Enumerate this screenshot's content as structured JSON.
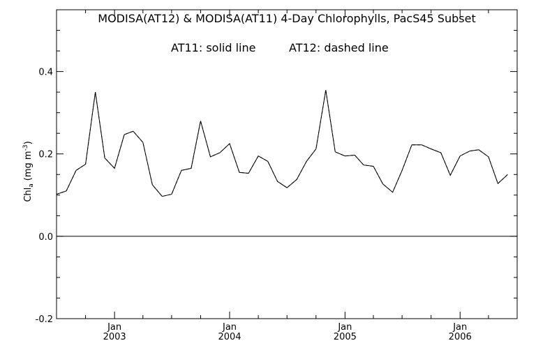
{
  "chart_data": {
    "type": "line",
    "title": "MODISA(AT12) & MODISA(AT11) 4-Day Chlorophylls, PacS45 Subset",
    "annotation": {
      "left": "AT11: solid line",
      "right": "AT12: dashed line"
    },
    "ylabel": {
      "main": "Chl",
      "sub": "a",
      "units": "(mg m",
      "exp": "-3",
      "close": ")"
    },
    "xlabel": "",
    "ylim": [
      -0.2,
      0.55
    ],
    "xlim": [
      "2002-07-01",
      "2006-07-01"
    ],
    "y_ticks": [
      -0.2,
      0.0,
      0.2,
      0.4
    ],
    "y_tick_labels": [
      "-0.2",
      "0.0",
      "0.2",
      "0.4"
    ],
    "x_tick_month_label": "Jan",
    "x_ticks": [
      "2003-01-01",
      "2004-01-01",
      "2005-01-01",
      "2006-01-01"
    ],
    "x_tick_year_labels": [
      "2003",
      "2004",
      "2005",
      "2006"
    ],
    "zero_line": 0.0,
    "series": [
      {
        "name": "AT11",
        "style": "solid",
        "color": "#000000",
        "points": [
          [
            "2002-07-01",
            0.102
          ],
          [
            "2002-08-01",
            0.11
          ],
          [
            "2002-09-01",
            0.16
          ],
          [
            "2002-10-01",
            0.175
          ],
          [
            "2002-11-01",
            0.35
          ],
          [
            "2002-12-01",
            0.19
          ],
          [
            "2003-01-01",
            0.165
          ],
          [
            "2003-02-01",
            0.247
          ],
          [
            "2003-03-01",
            0.255
          ],
          [
            "2003-04-01",
            0.228
          ],
          [
            "2003-05-01",
            0.125
          ],
          [
            "2003-06-01",
            0.097
          ],
          [
            "2003-07-01",
            0.102
          ],
          [
            "2003-08-01",
            0.16
          ],
          [
            "2003-09-01",
            0.165
          ],
          [
            "2003-10-01",
            0.28
          ],
          [
            "2003-11-01",
            0.193
          ],
          [
            "2003-12-01",
            0.203
          ],
          [
            "2004-01-01",
            0.225
          ],
          [
            "2004-02-01",
            0.155
          ],
          [
            "2004-03-01",
            0.153
          ],
          [
            "2004-04-01",
            0.195
          ],
          [
            "2004-05-01",
            0.182
          ],
          [
            "2004-06-01",
            0.133
          ],
          [
            "2004-07-01",
            0.118
          ],
          [
            "2004-08-01",
            0.138
          ],
          [
            "2004-09-01",
            0.182
          ],
          [
            "2004-10-01",
            0.212
          ],
          [
            "2004-11-01",
            0.355
          ],
          [
            "2004-12-01",
            0.205
          ],
          [
            "2005-01-01",
            0.195
          ],
          [
            "2005-02-01",
            0.197
          ],
          [
            "2005-03-01",
            0.173
          ],
          [
            "2005-04-01",
            0.17
          ],
          [
            "2005-05-01",
            0.127
          ],
          [
            "2005-06-01",
            0.107
          ],
          [
            "2005-07-01",
            0.16
          ],
          [
            "2005-08-01",
            0.222
          ],
          [
            "2005-09-01",
            0.222
          ],
          [
            "2005-10-01",
            0.212
          ],
          [
            "2005-11-01",
            0.203
          ],
          [
            "2005-12-01",
            0.148
          ],
          [
            "2006-01-01",
            0.195
          ],
          [
            "2006-02-01",
            0.207
          ],
          [
            "2006-03-01",
            0.21
          ],
          [
            "2006-04-01",
            0.193
          ],
          [
            "2006-05-01",
            0.128
          ],
          [
            "2006-06-01",
            0.15
          ]
        ]
      },
      {
        "name": "AT12",
        "style": "dashed",
        "color": "#000000",
        "points": [
          [
            "2002-07-01",
            0.102
          ],
          [
            "2002-08-01",
            0.11
          ],
          [
            "2002-09-01",
            0.16
          ],
          [
            "2002-10-01",
            0.175
          ],
          [
            "2002-11-01",
            0.35
          ],
          [
            "2002-12-01",
            0.19
          ],
          [
            "2003-01-01",
            0.165
          ],
          [
            "2003-02-01",
            0.247
          ],
          [
            "2003-03-01",
            0.255
          ],
          [
            "2003-04-01",
            0.228
          ],
          [
            "2003-05-01",
            0.125
          ],
          [
            "2003-06-01",
            0.097
          ],
          [
            "2003-07-01",
            0.102
          ],
          [
            "2003-08-01",
            0.16
          ],
          [
            "2003-09-01",
            0.165
          ],
          [
            "2003-10-01",
            0.28
          ],
          [
            "2003-11-01",
            0.193
          ],
          [
            "2003-12-01",
            0.203
          ],
          [
            "2004-01-01",
            0.225
          ],
          [
            "2004-02-01",
            0.155
          ],
          [
            "2004-03-01",
            0.153
          ],
          [
            "2004-04-01",
            0.195
          ],
          [
            "2004-05-01",
            0.182
          ],
          [
            "2004-06-01",
            0.133
          ],
          [
            "2004-07-01",
            0.118
          ],
          [
            "2004-08-01",
            0.138
          ],
          [
            "2004-09-01",
            0.182
          ],
          [
            "2004-10-01",
            0.212
          ],
          [
            "2004-11-01",
            0.355
          ],
          [
            "2004-12-01",
            0.205
          ],
          [
            "2005-01-01",
            0.195
          ],
          [
            "2005-02-01",
            0.197
          ],
          [
            "2005-03-01",
            0.173
          ],
          [
            "2005-04-01",
            0.17
          ],
          [
            "2005-05-01",
            0.127
          ],
          [
            "2005-06-01",
            0.107
          ],
          [
            "2005-07-01",
            0.16
          ],
          [
            "2005-08-01",
            0.222
          ],
          [
            "2005-09-01",
            0.222
          ],
          [
            "2005-10-01",
            0.212
          ],
          [
            "2005-11-01",
            0.203
          ],
          [
            "2005-12-01",
            0.148
          ],
          [
            "2006-01-01",
            0.195
          ],
          [
            "2006-02-01",
            0.207
          ],
          [
            "2006-03-01",
            0.21
          ],
          [
            "2006-04-01",
            0.193
          ],
          [
            "2006-05-01",
            0.128
          ],
          [
            "2006-06-01",
            0.15
          ]
        ]
      }
    ]
  }
}
